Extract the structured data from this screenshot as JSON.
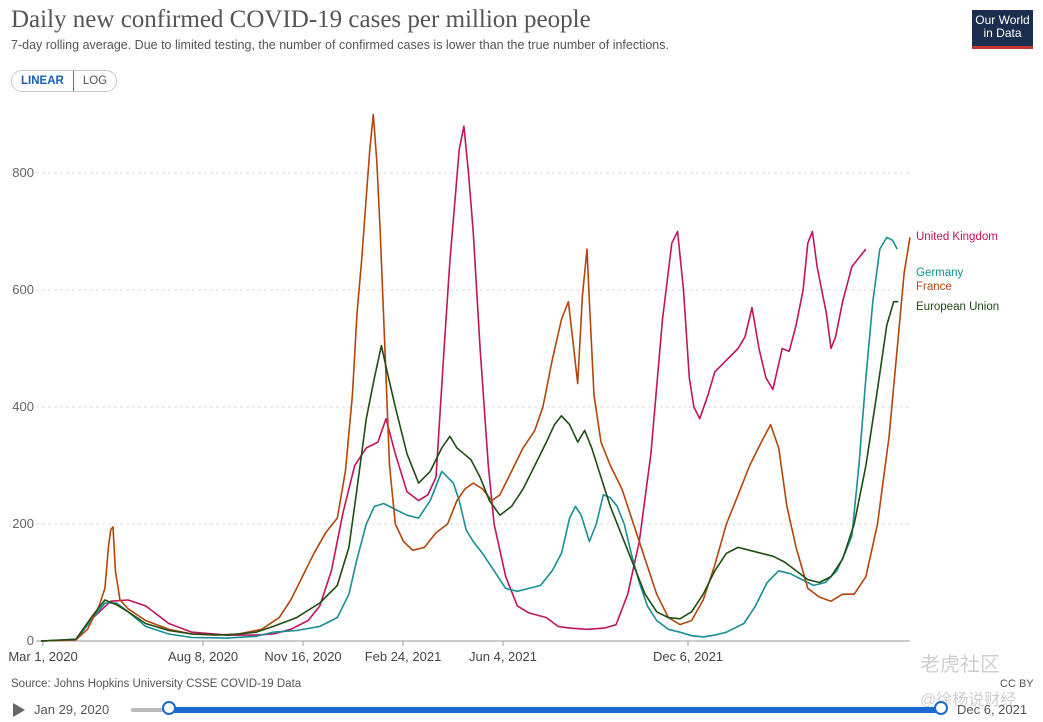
{
  "header": {
    "title": "Daily new confirmed COVID-19 cases per million people",
    "subtitle": "7-day rolling average. Due to limited testing, the number of confirmed cases is lower than the true number of infections.",
    "logo_line1": "Our World",
    "logo_line2": "in Data"
  },
  "scale_toggle": {
    "linear_label": "LINEAR",
    "log_label": "LOG",
    "selected": "LINEAR"
  },
  "footer": {
    "source": "Source: Johns Hopkins University CSSE COVID-19 Data",
    "license": "CC BY"
  },
  "timeline": {
    "start_label": "Jan 29, 2020",
    "end_label": "Dec 6, 2021"
  },
  "watermark": {
    "line1": "老虎社区",
    "line2": "@徐杨说财经"
  },
  "colors": {
    "uk": "#c1145e",
    "germany": "#188f94",
    "france": "#b3460b",
    "eu": "#1f4d14"
  },
  "chart_data": {
    "type": "line",
    "title": "Daily new confirmed COVID-19 cases per million people",
    "x_range": [
      "2020-01-29",
      "2021-12-06"
    ],
    "ylim": [
      0,
      900
    ],
    "y_ticks": [
      0,
      200,
      400,
      600,
      800
    ],
    "x_ticks": [
      {
        "label": "Mar 1, 2020",
        "day": 32
      },
      {
        "label": "Aug 8, 2020",
        "day": 192
      },
      {
        "label": "Nov 16, 2020",
        "day": 292
      },
      {
        "label": "Feb 24, 2021",
        "day": 392
      },
      {
        "label": "Jun 4, 2021",
        "day": 492
      },
      {
        "label": "Dec 6, 2021",
        "day": 677
      }
    ],
    "grid": true,
    "legend": "right-inline",
    "series": [
      {
        "name": "United Kingdom",
        "color": "#c1145e",
        "points": [
          [
            0,
            0
          ],
          [
            30,
            2
          ],
          [
            45,
            40
          ],
          [
            60,
            68
          ],
          [
            75,
            70
          ],
          [
            90,
            60
          ],
          [
            110,
            30
          ],
          [
            130,
            15
          ],
          [
            160,
            10
          ],
          [
            185,
            10
          ],
          [
            200,
            12
          ],
          [
            215,
            20
          ],
          [
            230,
            35
          ],
          [
            240,
            60
          ],
          [
            250,
            120
          ],
          [
            260,
            220
          ],
          [
            270,
            300
          ],
          [
            280,
            330
          ],
          [
            290,
            340
          ],
          [
            297,
            380
          ],
          [
            305,
            320
          ],
          [
            315,
            255
          ],
          [
            325,
            240
          ],
          [
            333,
            250
          ],
          [
            340,
            280
          ],
          [
            347,
            500
          ],
          [
            352,
            650
          ],
          [
            357,
            770
          ],
          [
            360,
            840
          ],
          [
            364,
            880
          ],
          [
            368,
            800
          ],
          [
            372,
            700
          ],
          [
            378,
            500
          ],
          [
            385,
            300
          ],
          [
            390,
            200
          ],
          [
            400,
            110
          ],
          [
            410,
            60
          ],
          [
            420,
            48
          ],
          [
            435,
            40
          ],
          [
            445,
            25
          ],
          [
            455,
            22
          ],
          [
            470,
            20
          ],
          [
            485,
            22
          ],
          [
            495,
            28
          ],
          [
            505,
            80
          ],
          [
            515,
            170
          ],
          [
            525,
            320
          ],
          [
            535,
            550
          ],
          [
            543,
            680
          ],
          [
            548,
            700
          ],
          [
            553,
            600
          ],
          [
            558,
            450
          ],
          [
            562,
            400
          ],
          [
            567,
            380
          ],
          [
            574,
            420
          ],
          [
            580,
            460
          ],
          [
            590,
            480
          ],
          [
            600,
            500
          ],
          [
            606,
            520
          ],
          [
            612,
            570
          ],
          [
            618,
            500
          ],
          [
            624,
            450
          ],
          [
            630,
            430
          ],
          [
            638,
            500
          ],
          [
            644,
            495
          ],
          [
            650,
            540
          ],
          [
            656,
            600
          ],
          [
            660,
            680
          ],
          [
            664,
            700
          ],
          [
            668,
            640
          ],
          [
            672,
            600
          ],
          [
            676,
            560
          ],
          [
            680,
            500
          ],
          [
            684,
            520
          ],
          [
            690,
            580
          ],
          [
            698,
            640
          ],
          [
            706,
            660
          ],
          [
            710,
            670
          ]
        ]
      },
      {
        "name": "Germany",
        "color": "#188f94",
        "points": [
          [
            0,
            0
          ],
          [
            30,
            2
          ],
          [
            45,
            40
          ],
          [
            55,
            65
          ],
          [
            65,
            65
          ],
          [
            75,
            50
          ],
          [
            90,
            25
          ],
          [
            110,
            12
          ],
          [
            130,
            6
          ],
          [
            160,
            5
          ],
          [
            185,
            8
          ],
          [
            200,
            15
          ],
          [
            220,
            18
          ],
          [
            240,
            25
          ],
          [
            255,
            40
          ],
          [
            265,
            80
          ],
          [
            272,
            140
          ],
          [
            280,
            200
          ],
          [
            287,
            230
          ],
          [
            295,
            235
          ],
          [
            305,
            225
          ],
          [
            315,
            215
          ],
          [
            325,
            210
          ],
          [
            335,
            240
          ],
          [
            345,
            290
          ],
          [
            355,
            270
          ],
          [
            360,
            240
          ],
          [
            366,
            190
          ],
          [
            372,
            170
          ],
          [
            380,
            150
          ],
          [
            390,
            120
          ],
          [
            400,
            90
          ],
          [
            410,
            85
          ],
          [
            420,
            90
          ],
          [
            430,
            95
          ],
          [
            440,
            120
          ],
          [
            448,
            150
          ],
          [
            455,
            210
          ],
          [
            460,
            230
          ],
          [
            465,
            215
          ],
          [
            472,
            170
          ],
          [
            478,
            200
          ],
          [
            484,
            250
          ],
          [
            490,
            245
          ],
          [
            496,
            230
          ],
          [
            502,
            200
          ],
          [
            508,
            150
          ],
          [
            515,
            100
          ],
          [
            522,
            60
          ],
          [
            530,
            35
          ],
          [
            540,
            20
          ],
          [
            550,
            15
          ],
          [
            560,
            9
          ],
          [
            570,
            7
          ],
          [
            580,
            10
          ],
          [
            590,
            15
          ],
          [
            605,
            30
          ],
          [
            615,
            60
          ],
          [
            625,
            100
          ],
          [
            635,
            120
          ],
          [
            645,
            115
          ],
          [
            655,
            105
          ],
          [
            665,
            95
          ],
          [
            675,
            100
          ],
          [
            685,
            120
          ],
          [
            692,
            150
          ],
          [
            698,
            180
          ],
          [
            704,
            300
          ],
          [
            710,
            450
          ],
          [
            716,
            580
          ],
          [
            722,
            670
          ],
          [
            728,
            690
          ],
          [
            733,
            685
          ],
          [
            737,
            670
          ]
        ]
      },
      {
        "name": "France",
        "color": "#b3460b",
        "points": [
          [
            0,
            0
          ],
          [
            30,
            2
          ],
          [
            40,
            20
          ],
          [
            50,
            60
          ],
          [
            55,
            90
          ],
          [
            58,
            160
          ],
          [
            60,
            190
          ],
          [
            62,
            195
          ],
          [
            64,
            120
          ],
          [
            68,
            70
          ],
          [
            75,
            55
          ],
          [
            90,
            35
          ],
          [
            110,
            20
          ],
          [
            130,
            12
          ],
          [
            150,
            10
          ],
          [
            170,
            12
          ],
          [
            190,
            20
          ],
          [
            205,
            40
          ],
          [
            215,
            70
          ],
          [
            225,
            110
          ],
          [
            235,
            150
          ],
          [
            245,
            185
          ],
          [
            255,
            210
          ],
          [
            262,
            290
          ],
          [
            268,
            420
          ],
          [
            272,
            560
          ],
          [
            276,
            650
          ],
          [
            280,
            760
          ],
          [
            283,
            840
          ],
          [
            286,
            900
          ],
          [
            289,
            820
          ],
          [
            292,
            700
          ],
          [
            296,
            500
          ],
          [
            300,
            300
          ],
          [
            305,
            200
          ],
          [
            312,
            170
          ],
          [
            320,
            155
          ],
          [
            330,
            160
          ],
          [
            340,
            185
          ],
          [
            350,
            200
          ],
          [
            358,
            240
          ],
          [
            365,
            260
          ],
          [
            372,
            270
          ],
          [
            380,
            260
          ],
          [
            388,
            240
          ],
          [
            395,
            250
          ],
          [
            405,
            290
          ],
          [
            415,
            330
          ],
          [
            425,
            360
          ],
          [
            432,
            400
          ],
          [
            440,
            480
          ],
          [
            448,
            550
          ],
          [
            454,
            580
          ],
          [
            458,
            510
          ],
          [
            462,
            440
          ],
          [
            466,
            590
          ],
          [
            470,
            670
          ],
          [
            472,
            580
          ],
          [
            476,
            420
          ],
          [
            482,
            340
          ],
          [
            490,
            300
          ],
          [
            500,
            260
          ],
          [
            510,
            200
          ],
          [
            520,
            140
          ],
          [
            530,
            80
          ],
          [
            540,
            40
          ],
          [
            550,
            28
          ],
          [
            560,
            35
          ],
          [
            570,
            70
          ],
          [
            580,
            130
          ],
          [
            590,
            200
          ],
          [
            600,
            250
          ],
          [
            610,
            300
          ],
          [
            620,
            340
          ],
          [
            628,
            370
          ],
          [
            635,
            330
          ],
          [
            642,
            230
          ],
          [
            650,
            160
          ],
          [
            660,
            90
          ],
          [
            670,
            75
          ],
          [
            680,
            68
          ],
          [
            690,
            80
          ],
          [
            700,
            80
          ],
          [
            710,
            110
          ],
          [
            720,
            200
          ],
          [
            730,
            350
          ],
          [
            737,
            500
          ],
          [
            743,
            630
          ],
          [
            748,
            690
          ]
        ]
      },
      {
        "name": "European Union",
        "color": "#1f4d14",
        "points": [
          [
            0,
            0
          ],
          [
            30,
            3
          ],
          [
            45,
            45
          ],
          [
            55,
            70
          ],
          [
            65,
            62
          ],
          [
            75,
            50
          ],
          [
            90,
            30
          ],
          [
            110,
            18
          ],
          [
            130,
            12
          ],
          [
            160,
            10
          ],
          [
            185,
            15
          ],
          [
            200,
            25
          ],
          [
            220,
            40
          ],
          [
            240,
            65
          ],
          [
            255,
            95
          ],
          [
            265,
            160
          ],
          [
            272,
            260
          ],
          [
            280,
            380
          ],
          [
            287,
            450
          ],
          [
            293,
            505
          ],
          [
            298,
            460
          ],
          [
            305,
            400
          ],
          [
            315,
            320
          ],
          [
            325,
            270
          ],
          [
            335,
            290
          ],
          [
            345,
            330
          ],
          [
            352,
            350
          ],
          [
            358,
            330
          ],
          [
            364,
            320
          ],
          [
            370,
            310
          ],
          [
            378,
            280
          ],
          [
            386,
            240
          ],
          [
            395,
            215
          ],
          [
            405,
            230
          ],
          [
            415,
            260
          ],
          [
            425,
            300
          ],
          [
            435,
            340
          ],
          [
            442,
            370
          ],
          [
            448,
            385
          ],
          [
            455,
            370
          ],
          [
            462,
            340
          ],
          [
            468,
            360
          ],
          [
            474,
            330
          ],
          [
            482,
            280
          ],
          [
            490,
            230
          ],
          [
            500,
            180
          ],
          [
            510,
            130
          ],
          [
            520,
            80
          ],
          [
            530,
            50
          ],
          [
            540,
            40
          ],
          [
            550,
            38
          ],
          [
            560,
            50
          ],
          [
            570,
            80
          ],
          [
            580,
            120
          ],
          [
            590,
            150
          ],
          [
            600,
            160
          ],
          [
            610,
            155
          ],
          [
            620,
            150
          ],
          [
            630,
            145
          ],
          [
            640,
            135
          ],
          [
            650,
            120
          ],
          [
            660,
            105
          ],
          [
            670,
            100
          ],
          [
            680,
            110
          ],
          [
            690,
            140
          ],
          [
            700,
            200
          ],
          [
            710,
            300
          ],
          [
            720,
            430
          ],
          [
            728,
            540
          ],
          [
            734,
            580
          ],
          [
            738,
            580
          ]
        ]
      }
    ]
  }
}
